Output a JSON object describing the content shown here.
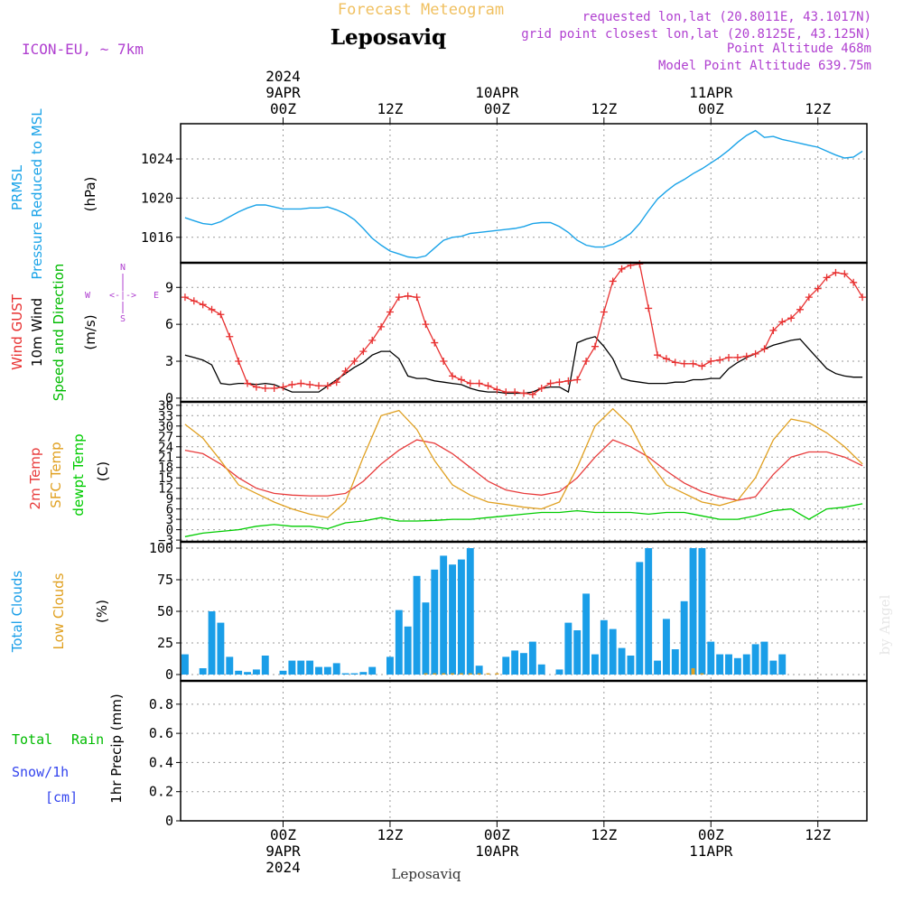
{
  "header": {
    "product_title": "Forecast Meteogram",
    "location": "Leposaviq",
    "model": "ICON-EU, ~ 7km",
    "requested": "requested lon,lat (20.8011E, 43.1017N)",
    "grid_point": "grid point closest lon,lat (20.8125E, 43.125N)",
    "point_altitude": "Point Altitude 468m",
    "model_altitude": "Model Point Altitude 639.75m",
    "footer_location": "Leposaviq",
    "watermark": "by Angel"
  },
  "time_axis": {
    "top_labels": [
      {
        "h": 0,
        "lines": [
          "2024",
          "9APR",
          "00Z"
        ]
      },
      {
        "h": 12,
        "lines": [
          "12Z"
        ]
      },
      {
        "h": 24,
        "lines": [
          "10APR",
          "00Z"
        ]
      },
      {
        "h": 36,
        "lines": [
          "12Z"
        ]
      },
      {
        "h": 48,
        "lines": [
          "11APR",
          "00Z"
        ]
      },
      {
        "h": 60,
        "lines": [
          "12Z"
        ]
      }
    ],
    "bottom_labels": [
      {
        "h": 0,
        "lines": [
          "00Z",
          "9APR",
          "2024"
        ]
      },
      {
        "h": 12,
        "lines": [
          "12Z"
        ]
      },
      {
        "h": 24,
        "lines": [
          "00Z",
          "10APR"
        ]
      },
      {
        "h": 36,
        "lines": [
          "12Z"
        ]
      },
      {
        "h": 48,
        "lines": [
          "00Z",
          "11APR"
        ]
      },
      {
        "h": 60,
        "lines": [
          "12Z"
        ]
      }
    ],
    "range_hours": [
      -11.5,
      65.5
    ]
  },
  "colors": {
    "pressure": "#1aa3e8",
    "gust": "#e83030",
    "wind10m": "#000000",
    "green_label": "#00bb00",
    "sfc_temp": "#e0a020",
    "temp2m": "#e83c3c",
    "dewpt": "#00cc00",
    "total_clouds": "#1a9ee8",
    "low_clouds": "#e0a020",
    "snow_label": "#3344ee",
    "header_purple": "#b040d0",
    "title_orange": "#f0c060"
  },
  "chart_data": [
    {
      "type": "line",
      "panel": "pressure",
      "labels": [
        "PRMSL",
        "Pressure Reduced to MSL",
        "(hPa)"
      ],
      "y_ticks": [
        1016,
        1020,
        1024
      ],
      "ylim": [
        1013.4,
        1027.6
      ],
      "grid": true,
      "series": [
        {
          "name": "PRMSL",
          "x": [
            -11,
            -10,
            -9,
            -8,
            -7,
            -6,
            -5,
            -4,
            -3,
            -2,
            -1,
            0,
            1,
            2,
            3,
            4,
            5,
            6,
            7,
            8,
            9,
            10,
            11,
            12,
            13,
            14,
            15,
            16,
            17,
            18,
            19,
            20,
            21,
            22,
            23,
            24,
            25,
            26,
            27,
            28,
            29,
            30,
            31,
            32,
            33,
            34,
            35,
            36,
            37,
            38,
            39,
            40,
            41,
            42,
            43,
            44,
            45,
            46,
            47,
            48,
            49,
            50,
            51,
            52,
            53,
            54,
            55,
            56,
            57,
            58,
            59,
            60,
            61,
            62,
            63,
            64,
            65
          ],
          "values": [
            1018.0,
            1017.7,
            1017.4,
            1017.3,
            1017.6,
            1018.1,
            1018.6,
            1019.0,
            1019.3,
            1019.3,
            1019.1,
            1018.9,
            1018.9,
            1018.9,
            1019.0,
            1019.0,
            1019.1,
            1018.8,
            1018.4,
            1017.8,
            1016.9,
            1015.9,
            1015.2,
            1014.6,
            1014.3,
            1014.0,
            1013.9,
            1014.1,
            1014.9,
            1015.7,
            1016.0,
            1016.1,
            1016.4,
            1016.5,
            1016.6,
            1016.7,
            1016.8,
            1016.9,
            1017.1,
            1017.4,
            1017.5,
            1017.5,
            1017.1,
            1016.5,
            1015.7,
            1015.2,
            1015.0,
            1015.0,
            1015.3,
            1015.8,
            1016.4,
            1017.4,
            1018.7,
            1019.9,
            1020.7,
            1021.4,
            1021.9,
            1022.5,
            1023.0,
            1023.6,
            1024.2,
            1024.9,
            1025.7,
            1026.4,
            1026.9,
            1026.2,
            1026.3,
            1026.0,
            1025.8,
            1025.6,
            1025.4,
            1025.2,
            1024.8,
            1024.4,
            1024.1,
            1024.2,
            1024.8
          ]
        }
      ]
    },
    {
      "type": "line",
      "panel": "wind",
      "labels": [
        "Wind GUST",
        "10m Wind",
        "Speed and Direction",
        "(m/s)"
      ],
      "compass": {
        "n": "N",
        "s": "S",
        "w": "W",
        "e": "E",
        "arrows": "<-|->"
      },
      "y_ticks": [
        0,
        3,
        6,
        9
      ],
      "ylim": [
        -0.3,
        11.0
      ],
      "grid": true,
      "series": [
        {
          "name": "Wind GUST",
          "x": [
            -11,
            -10,
            -9,
            -8,
            -7,
            -6,
            -5,
            -4,
            -3,
            -2,
            -1,
            0,
            1,
            2,
            3,
            4,
            5,
            6,
            7,
            8,
            9,
            10,
            11,
            12,
            13,
            14,
            15,
            16,
            17,
            18,
            19,
            20,
            21,
            22,
            23,
            24,
            25,
            26,
            27,
            28,
            29,
            30,
            31,
            32,
            33,
            34,
            35,
            36,
            37,
            38,
            39,
            40,
            41,
            42,
            43,
            44,
            45,
            46,
            47,
            48,
            49,
            50,
            51,
            52,
            53,
            54,
            55,
            56,
            57,
            58,
            59,
            60,
            61,
            62,
            63,
            64,
            65
          ],
          "values": [
            8.2,
            7.9,
            7.6,
            7.2,
            6.8,
            5.0,
            3.0,
            1.2,
            0.9,
            0.8,
            0.8,
            0.9,
            1.1,
            1.2,
            1.1,
            1.0,
            1.0,
            1.3,
            2.2,
            3.0,
            3.8,
            4.7,
            5.8,
            7.0,
            8.2,
            8.3,
            8.2,
            6.0,
            4.5,
            3.0,
            1.8,
            1.5,
            1.2,
            1.2,
            1.0,
            0.7,
            0.5,
            0.5,
            0.4,
            0.3,
            0.8,
            1.2,
            1.3,
            1.4,
            1.5,
            3.0,
            4.2,
            7.0,
            9.5,
            10.5,
            10.8,
            10.9,
            7.3,
            3.5,
            3.2,
            2.9,
            2.8,
            2.8,
            2.6,
            3.0,
            3.1,
            3.3,
            3.3,
            3.4,
            3.6,
            4.0,
            5.5,
            6.2,
            6.5,
            7.2,
            8.2,
            8.9,
            9.8,
            10.2,
            10.1,
            9.4,
            8.2
          ]
        },
        {
          "name": "10m Wind",
          "x": [
            -11,
            -10,
            -9,
            -8,
            -7,
            -6,
            -5,
            -4,
            -3,
            -2,
            -1,
            0,
            1,
            2,
            3,
            4,
            5,
            6,
            7,
            8,
            9,
            10,
            11,
            12,
            13,
            14,
            15,
            16,
            17,
            18,
            19,
            20,
            21,
            22,
            23,
            24,
            25,
            26,
            27,
            28,
            29,
            30,
            31,
            32,
            33,
            34,
            35,
            36,
            37,
            38,
            39,
            40,
            41,
            42,
            43,
            44,
            45,
            46,
            47,
            48,
            49,
            50,
            51,
            52,
            53,
            54,
            55,
            56,
            57,
            58,
            59,
            60,
            61,
            62,
            63,
            64,
            65
          ],
          "values": [
            3.5,
            3.3,
            3.1,
            2.7,
            1.2,
            1.1,
            1.2,
            1.2,
            1.1,
            1.2,
            1.1,
            0.8,
            0.5,
            0.5,
            0.5,
            0.5,
            1.0,
            1.5,
            2.0,
            2.5,
            2.9,
            3.5,
            3.8,
            3.8,
            3.2,
            1.8,
            1.6,
            1.6,
            1.4,
            1.3,
            1.2,
            1.1,
            0.8,
            0.6,
            0.5,
            0.5,
            0.4,
            0.4,
            0.4,
            0.5,
            0.8,
            0.9,
            0.9,
            0.5,
            4.5,
            4.8,
            5.0,
            4.2,
            3.2,
            1.6,
            1.4,
            1.3,
            1.2,
            1.2,
            1.2,
            1.3,
            1.3,
            1.5,
            1.5,
            1.6,
            1.6,
            2.4,
            2.9,
            3.3,
            3.6,
            4.0,
            4.3,
            4.5,
            4.7,
            4.8,
            4.0,
            3.2,
            2.4,
            2.0,
            1.8,
            1.7,
            1.7
          ]
        }
      ]
    },
    {
      "type": "line",
      "panel": "temperature",
      "labels": [
        "2m Temp",
        "SFC Temp",
        "dewpt Temp",
        "(C)"
      ],
      "y_ticks": [
        -3,
        0,
        3,
        6,
        9,
        12,
        15,
        18,
        21,
        24,
        27,
        30,
        33,
        36
      ],
      "ylim": [
        -3.5,
        37.0
      ],
      "grid": true,
      "series": [
        {
          "name": "2m Temp",
          "x": [
            -11,
            -9,
            -7,
            -5,
            -3,
            -1,
            1,
            3,
            5,
            7,
            9,
            11,
            13,
            15,
            17,
            19,
            21,
            23,
            25,
            27,
            29,
            31,
            33,
            35,
            37,
            39,
            41,
            43,
            45,
            47,
            49,
            51,
            53,
            55,
            57,
            59,
            61,
            63,
            65
          ],
          "values": [
            23,
            22,
            19,
            15,
            12,
            10.5,
            10,
            9.8,
            9.8,
            10.5,
            14,
            19,
            23,
            26,
            25,
            22,
            18,
            14,
            11.5,
            10.5,
            10,
            11,
            15,
            21,
            26,
            24,
            21,
            17,
            13.5,
            11,
            9.5,
            8.5,
            9.5,
            16,
            21,
            22.5,
            22.5,
            21,
            18.5
          ]
        },
        {
          "name": "SFC Temp",
          "x": [
            -11,
            -9,
            -7,
            -5,
            -3,
            -1,
            1,
            3,
            5,
            7,
            9,
            11,
            13,
            15,
            17,
            19,
            21,
            23,
            25,
            27,
            29,
            31,
            33,
            35,
            37,
            39,
            41,
            43,
            45,
            47,
            49,
            51,
            53,
            55,
            57,
            59,
            61,
            63,
            65
          ],
          "values": [
            30.5,
            26.5,
            20,
            13,
            10.5,
            8,
            6,
            4.5,
            3.5,
            8,
            21,
            33,
            34.5,
            29,
            20,
            13,
            10,
            8,
            7.3,
            6.5,
            6,
            8,
            18,
            30,
            35,
            30,
            20,
            13,
            10.5,
            8,
            7,
            8.5,
            15,
            26,
            32,
            31,
            28,
            24,
            19
          ]
        },
        {
          "name": "dewpt Temp",
          "x": [
            -11,
            -9,
            -7,
            -5,
            -3,
            -1,
            1,
            3,
            5,
            7,
            9,
            11,
            13,
            15,
            17,
            19,
            21,
            23,
            25,
            27,
            29,
            31,
            33,
            35,
            37,
            39,
            41,
            43,
            45,
            47,
            49,
            51,
            53,
            55,
            57,
            59,
            61,
            63,
            65
          ],
          "values": [
            -2,
            -1,
            -0.5,
            0,
            1,
            1.5,
            1,
            1,
            0.3,
            2,
            2.5,
            3.5,
            2.5,
            2.5,
            2.7,
            3,
            3,
            3.5,
            4,
            4.5,
            5,
            5,
            5.5,
            5,
            5,
            5,
            4.5,
            5,
            5,
            4,
            3,
            3,
            4,
            5.5,
            6,
            3,
            6,
            6.5,
            7.5
          ]
        }
      ]
    },
    {
      "type": "bar",
      "panel": "clouds",
      "labels": [
        "Total Clouds",
        "Low Clouds",
        "(%)"
      ],
      "y_ticks": [
        0,
        25,
        50,
        75,
        100
      ],
      "ylim": [
        -5,
        105
      ],
      "grid": true,
      "series": [
        {
          "name": "Total Clouds",
          "x": [
            -11,
            -10,
            -9,
            -8,
            -7,
            -6,
            -5,
            -4,
            -3,
            -2,
            -1,
            0,
            1,
            2,
            3,
            4,
            5,
            6,
            7,
            8,
            9,
            10,
            11,
            12,
            13,
            14,
            15,
            16,
            17,
            18,
            19,
            20,
            21,
            22,
            23,
            24,
            25,
            26,
            27,
            28,
            29,
            30,
            31,
            32,
            33,
            34,
            35,
            36,
            37,
            38,
            39,
            40,
            41,
            42,
            43,
            44,
            45,
            46,
            47,
            48,
            49,
            50,
            51,
            52,
            53,
            54,
            55,
            56,
            57,
            58,
            59,
            60,
            61,
            62,
            63,
            64,
            65
          ],
          "values": [
            16,
            0,
            5,
            50,
            41,
            14,
            3,
            2,
            4,
            15,
            0,
            3,
            11,
            11,
            11,
            6,
            6,
            9,
            1,
            1,
            2,
            6,
            0,
            14,
            51,
            38,
            78,
            57,
            83,
            94,
            87,
            91,
            100,
            7,
            0,
            0,
            14,
            19,
            17,
            26,
            8,
            0,
            4,
            41,
            35,
            64,
            16,
            43,
            36,
            21,
            15,
            89,
            100,
            11,
            44,
            20,
            58,
            100,
            100,
            26,
            16,
            16,
            13,
            16,
            24,
            26,
            11,
            16,
            0,
            0,
            0,
            0,
            0,
            0,
            0,
            0,
            0
          ]
        },
        {
          "name": "Low Clouds",
          "x": [
            16,
            17,
            18,
            19,
            20,
            21,
            22,
            23,
            24,
            25,
            46,
            47
          ],
          "values": [
            1,
            1,
            1,
            1,
            1,
            1,
            1,
            1,
            1,
            0,
            5,
            1
          ]
        }
      ]
    },
    {
      "type": "bar",
      "panel": "precipitation",
      "labels": [
        "Total",
        "Rain",
        "Snow/1h",
        "[cm]",
        "1hr Precip (mm)"
      ],
      "y_ticks": [
        0,
        0.2,
        0.4,
        0.6,
        0.8
      ],
      "ylim": [
        0,
        0.96
      ],
      "grid": true,
      "series": [
        {
          "name": "Total",
          "x": [],
          "values": []
        }
      ]
    }
  ]
}
